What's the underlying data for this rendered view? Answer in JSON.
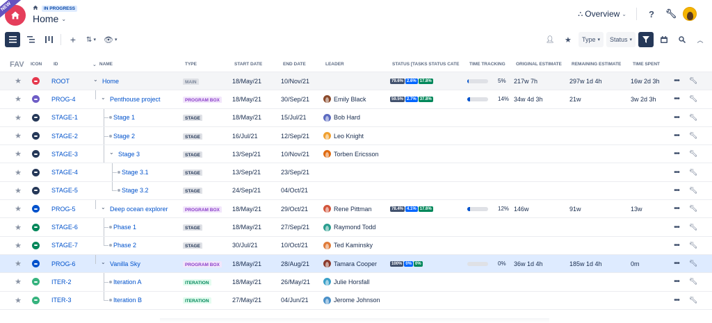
{
  "header": {
    "ribbon": "NEW",
    "status_badge": "IN PROGRESS",
    "title": "Home",
    "overview_label": "Overview"
  },
  "toolbar": {
    "type_label": "Type",
    "status_label": "Status"
  },
  "columns": {
    "fav": "FAV",
    "icon": "ICON",
    "id": "ID",
    "name": "NAME",
    "type": "TYPE",
    "start": "START DATE",
    "end": "END DATE",
    "leader": "LEADER",
    "status": "STATUS [TASKS STATUS CATE",
    "tracking": "TIME TRACKING",
    "orig": "ORIGINAL ESTIMATE",
    "remaining": "REMAINING ESTIMATE",
    "spent": "TIME SPENT"
  },
  "rows": [
    {
      "id": "ROOT",
      "name": "Home",
      "type": "MAIN",
      "start": "18/May/21",
      "end": "10/Nov/21",
      "leader": "",
      "status": [
        "79.6%",
        "2.6%",
        "17.8%"
      ],
      "tracking": 0.05,
      "tracking_label": "5%",
      "orig": "217w 7h",
      "remaining": "297w 1d 4h",
      "spent": "16w 2d 3h",
      "icon_color": "#e5384d",
      "avatar_color": ""
    },
    {
      "id": "PROG-4",
      "name": "Penthouse project",
      "type": "PROGRAM BOX",
      "start": "18/May/21",
      "end": "30/Sep/21",
      "leader": "Emily Black",
      "status": [
        "59.5%",
        "2.7%",
        "37.8%"
      ],
      "tracking": 0.14,
      "tracking_label": "14%",
      "orig": "34w 4d 3h",
      "remaining": "21w",
      "spent": "3w 2d 3h",
      "icon_color": "#6e5dc6",
      "avatar_color": "#8b4a2b"
    },
    {
      "id": "STAGE-1",
      "name": "Stage 1",
      "type": "STAGE",
      "start": "18/May/21",
      "end": "15/Jul/21",
      "leader": "Bob Hard",
      "status": [],
      "tracking": null,
      "tracking_label": "",
      "orig": "",
      "remaining": "",
      "spent": "",
      "icon_color": "#253858",
      "avatar_color": "#5c6bc0"
    },
    {
      "id": "STAGE-2",
      "name": "Stage 2",
      "type": "STAGE",
      "start": "16/Jul/21",
      "end": "12/Sep/21",
      "leader": "Leo Knight",
      "status": [],
      "tracking": null,
      "tracking_label": "",
      "orig": "",
      "remaining": "",
      "spent": "",
      "icon_color": "#253858",
      "avatar_color": "#f0a030"
    },
    {
      "id": "STAGE-3",
      "name": "Stage 3",
      "type": "STAGE",
      "start": "13/Sep/21",
      "end": "10/Nov/21",
      "leader": "Torben Ericsson",
      "status": [],
      "tracking": null,
      "tracking_label": "",
      "orig": "",
      "remaining": "",
      "spent": "",
      "icon_color": "#253858",
      "avatar_color": "#e06a10"
    },
    {
      "id": "STAGE-4",
      "name": "Stage 3.1",
      "type": "STAGE",
      "start": "13/Sep/21",
      "end": "23/Sep/21",
      "leader": "",
      "status": [],
      "tracking": null,
      "tracking_label": "",
      "orig": "",
      "remaining": "",
      "spent": "",
      "icon_color": "#253858",
      "avatar_color": ""
    },
    {
      "id": "STAGE-5",
      "name": "Stage 3.2",
      "type": "STAGE",
      "start": "24/Sep/21",
      "end": "04/Oct/21",
      "leader": "",
      "status": [],
      "tracking": null,
      "tracking_label": "",
      "orig": "",
      "remaining": "",
      "spent": "",
      "icon_color": "#253858",
      "avatar_color": ""
    },
    {
      "id": "PROG-5",
      "name": "Deep ocean explorer",
      "type": "PROGRAM BOX",
      "start": "18/May/21",
      "end": "29/Oct/21",
      "leader": "Rene Pittman",
      "status": [
        "78.4%",
        "4.1%",
        "17.6%"
      ],
      "tracking": 0.12,
      "tracking_label": "12%",
      "orig": "146w",
      "remaining": "91w",
      "spent": "13w",
      "icon_color": "#0052cc",
      "avatar_color": "#d2553a"
    },
    {
      "id": "STAGE-6",
      "name": "Phase 1",
      "type": "STAGE",
      "start": "18/May/21",
      "end": "27/Sep/21",
      "leader": "Raymond Todd",
      "status": [],
      "tracking": null,
      "tracking_label": "",
      "orig": "",
      "remaining": "",
      "spent": "",
      "icon_color": "#00875a",
      "avatar_color": "#2a9d8f"
    },
    {
      "id": "STAGE-7",
      "name": "Phase 2",
      "type": "STAGE",
      "start": "30/Jul/21",
      "end": "10/Oct/21",
      "leader": "Ted Kaminsky",
      "status": [],
      "tracking": null,
      "tracking_label": "",
      "orig": "",
      "remaining": "",
      "spent": "",
      "icon_color": "#00875a",
      "avatar_color": "#e07b39"
    },
    {
      "id": "PROG-6",
      "name": "Vanilla Sky",
      "type": "PROGRAM BOX",
      "start": "18/May/21",
      "end": "28/Aug/21",
      "leader": "Tamara Cooper",
      "status": [
        "100%",
        "0%",
        "0%"
      ],
      "tracking": 0.0,
      "tracking_label": "0%",
      "orig": "36w 1d 4h",
      "remaining": "185w 1d 4h",
      "spent": "0m",
      "icon_color": "#0052cc",
      "avatar_color": "#8b3a2b"
    },
    {
      "id": "ITER-2",
      "name": "Iteration A",
      "type": "ITERATION",
      "start": "18/May/21",
      "end": "26/May/21",
      "leader": "Julie Horsfall",
      "status": [],
      "tracking": null,
      "tracking_label": "",
      "orig": "",
      "remaining": "",
      "spent": "",
      "icon_color": "#36b37e",
      "avatar_color": "#3aa0c8"
    },
    {
      "id": "ITER-3",
      "name": "Iteration B",
      "type": "ITERATION",
      "start": "27/May/21",
      "end": "04/Jun/21",
      "leader": "Jerome Johnson",
      "status": [],
      "tracking": null,
      "tracking_label": "",
      "orig": "",
      "remaining": "",
      "spent": "",
      "icon_color": "#36b37e",
      "avatar_color": "#4a90c8"
    }
  ]
}
